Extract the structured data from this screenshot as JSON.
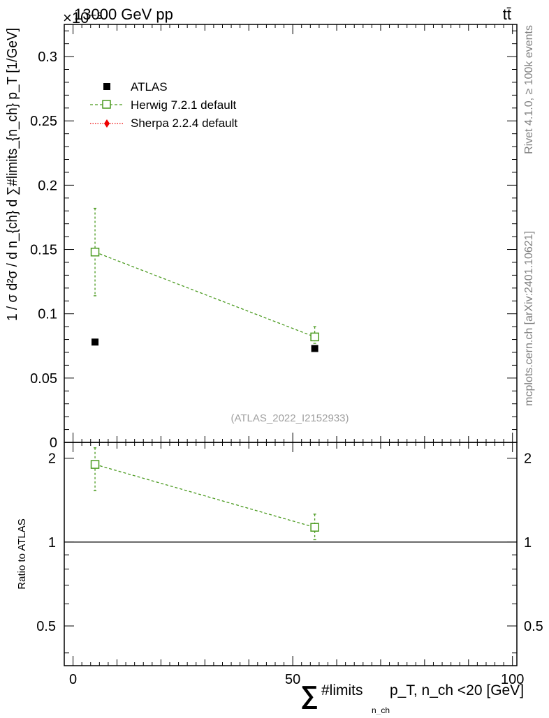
{
  "header": {
    "exponent_label": "×10⁻³",
    "energy_label": "13000 GeV pp",
    "process_label": "tt̄"
  },
  "side_labels": {
    "rivet": "Rivet 4.1.0, ≥ 100k events",
    "mcplots": "mcplots.cern.ch [arXiv:2401.10621]"
  },
  "analysis_label": "(ATLAS_2022_I2152933)",
  "legend": {
    "atlas": "ATLAS",
    "herwig": "Herwig 7.2.1 default",
    "sherpa": "Sherpa 2.2.4 default"
  },
  "axes": {
    "y_main_label": "1 / σ d²σ / d n_{ch} d ∑#limits_{n_ch} p_T [1/GeV]",
    "y_ratio_label": "Ratio to ATLAS",
    "x_label_sum": "∑",
    "x_label_rest": "#limits",
    "x_label_sub": "n_ch",
    "x_label_tail": "p_T, n_ch <20 [GeV]"
  },
  "chart_data": [
    {
      "type": "scatter",
      "panel": "main",
      "scale_factor": "1e-3",
      "xlim": [
        -2,
        101
      ],
      "ylim": [
        0,
        0.325
      ],
      "x_ticks": [
        0,
        50,
        100
      ],
      "y_ticks": [
        0,
        0.05,
        0.1,
        0.15,
        0.2,
        0.25,
        0.3
      ],
      "y_tick_labels": [
        "0",
        "0.05",
        "0.1",
        "0.15",
        "0.2",
        "0.25",
        "0.3"
      ],
      "series": [
        {
          "name": "ATLAS",
          "color": "#000000",
          "marker": "filled-square",
          "x": [
            5,
            55
          ],
          "y": [
            0.078,
            0.073
          ],
          "yerr": [
            0.001,
            0.001
          ]
        },
        {
          "name": "Herwig 7.2.1 default",
          "color": "#4a9a1f",
          "marker": "open-square",
          "line": "dashed",
          "x": [
            5,
            55
          ],
          "y": [
            0.148,
            0.082
          ],
          "yerr_low": [
            0.034,
            0.005
          ],
          "yerr_high": [
            0.034,
            0.008
          ]
        },
        {
          "name": "Sherpa 2.2.4 default",
          "color": "#ee0000",
          "marker": "diamond",
          "line": "dotted",
          "x": [],
          "y": []
        }
      ]
    },
    {
      "type": "scatter",
      "panel": "ratio",
      "xlim": [
        -2,
        101
      ],
      "ylim": [
        0.36,
        2.28
      ],
      "reference_line": 1,
      "y_ticks": [
        0.5,
        1,
        2
      ],
      "y_tick_labels": [
        "0.5",
        "1",
        "2"
      ],
      "x_tick_labels": [
        "0",
        "50",
        "100"
      ],
      "series": [
        {
          "name": "Herwig 7.2.1 default",
          "color": "#4a9a1f",
          "x": [
            5,
            55
          ],
          "y": [
            1.9,
            1.13
          ],
          "yerr_low": [
            0.37,
            0.11
          ],
          "yerr_high": [
            0.28,
            0.13
          ]
        }
      ]
    }
  ]
}
